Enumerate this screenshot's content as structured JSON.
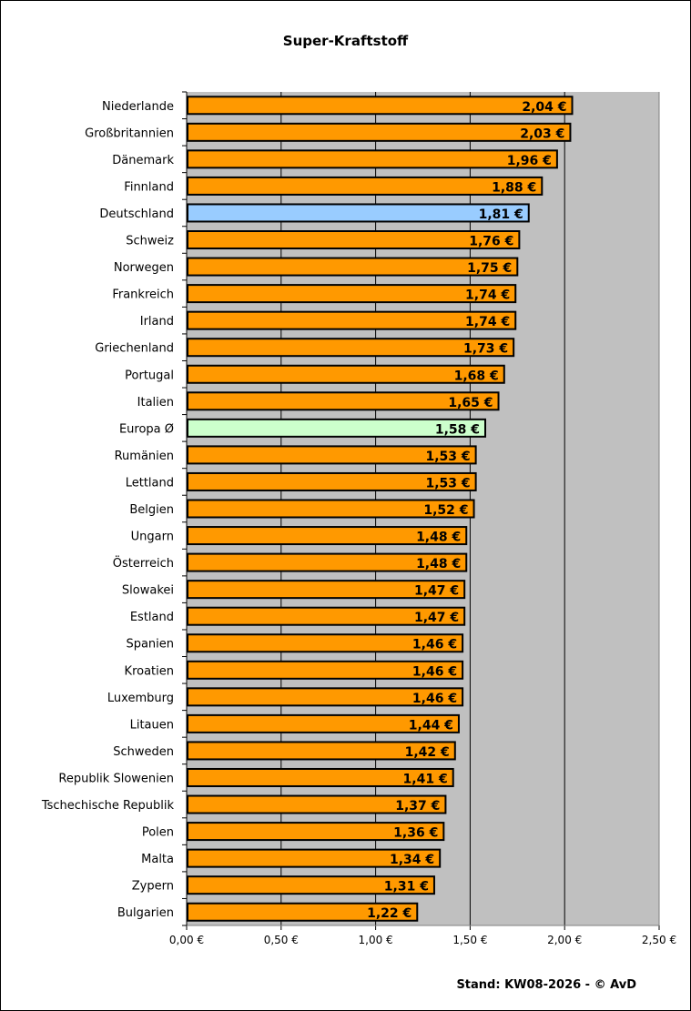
{
  "chart_data": {
    "type": "bar",
    "orientation": "horizontal",
    "title": "Super-Kraftstoff",
    "footer": "Stand: KW08-2026 - © AvD",
    "categories": [
      "Niederlande",
      "Großbritannien",
      "Dänemark",
      "Finnland",
      "Deutschland",
      "Schweiz",
      "Norwegen",
      "Frankreich",
      "Irland",
      "Griechenland",
      "Portugal",
      "Italien",
      "Europa Ø",
      "Rumänien",
      "Lettland",
      "Belgien",
      "Ungarn",
      "Österreich",
      "Slowakei",
      "Estland",
      "Spanien",
      "Kroatien",
      "Luxemburg",
      "Litauen",
      "Schweden",
      "Republik Slowenien",
      "Tschechische Republik",
      "Polen",
      "Malta",
      "Zypern",
      "Bulgarien"
    ],
    "values": [
      2.04,
      2.03,
      1.96,
      1.88,
      1.81,
      1.76,
      1.75,
      1.74,
      1.74,
      1.73,
      1.68,
      1.65,
      1.58,
      1.53,
      1.53,
      1.52,
      1.48,
      1.48,
      1.47,
      1.47,
      1.46,
      1.46,
      1.46,
      1.44,
      1.42,
      1.41,
      1.37,
      1.36,
      1.34,
      1.31,
      1.22
    ],
    "data_labels": [
      "2,04 €",
      "2,03 €",
      "1,96 €",
      "1,88 €",
      "1,81 €",
      "1,76 €",
      "1,75 €",
      "1,74 €",
      "1,74 €",
      "1,73 €",
      "1,68 €",
      "1,65 €",
      "1,58 €",
      "1,53 €",
      "1,53 €",
      "1,52 €",
      "1,48 €",
      "1,48 €",
      "1,47 €",
      "1,47 €",
      "1,46 €",
      "1,46 €",
      "1,46 €",
      "1,44 €",
      "1,42 €",
      "1,41 €",
      "1,37 €",
      "1,36 €",
      "1,34 €",
      "1,31 €",
      "1,22 €"
    ],
    "xlim": [
      0,
      2.5
    ],
    "xticks": [
      0,
      0.5,
      1,
      1.5,
      2,
      2.5
    ],
    "xtick_labels": [
      "0,00 €",
      "0,50 €",
      "1,00 €",
      "1,50 €",
      "2,00 €",
      "2,50 €"
    ],
    "grid": "vertical",
    "colors": {
      "default": "#FF9900",
      "Deutschland": "#99CCFF",
      "Europa Ø": "#CCFFCC",
      "plot_background": "#C0C0C0"
    }
  }
}
